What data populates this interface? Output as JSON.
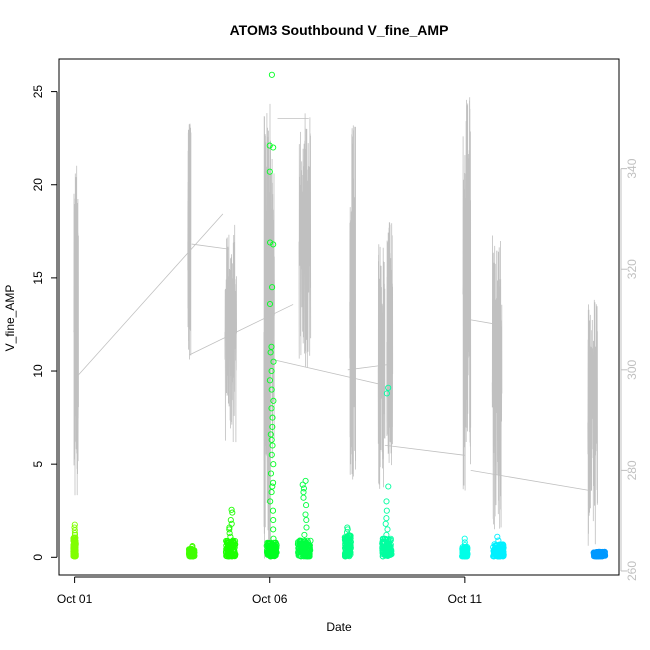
{
  "chart_data": {
    "type": "scatter",
    "title": "ATOM3 Southbound V_fine_AMP",
    "xlabel": "Date",
    "ylabel": "V_fine_AMP",
    "x_ticks": [
      {
        "label": "Oct 01",
        "value": 0
      },
      {
        "label": "Oct 06",
        "value": 5
      },
      {
        "label": "Oct 11",
        "value": 10
      }
    ],
    "y_ticks": [
      {
        "label": "0",
        "value": 0
      },
      {
        "label": "5",
        "value": 5
      },
      {
        "label": "10",
        "value": 10
      },
      {
        "label": "15",
        "value": 15
      },
      {
        "label": "20",
        "value": 20
      },
      {
        "label": "25",
        "value": 25
      }
    ],
    "y2_ticks": [
      {
        "label": "260",
        "value": 260
      },
      {
        "label": "280",
        "value": 280
      },
      {
        "label": "300",
        "value": 300
      },
      {
        "label": "320",
        "value": 320
      },
      {
        "label": "340",
        "value": 340
      }
    ],
    "xlim": [
      -0.4,
      13.95
    ],
    "ylim": [
      -0.95,
      26.75
    ],
    "y2lim": [
      259.2,
      361.8
    ],
    "grid": false,
    "legend": "none",
    "scatter_groups": [
      {
        "color": "#80ff00",
        "x_range": [
          -0.03,
          0.03
        ],
        "y_min": 0.05,
        "y_max": 1.1,
        "outliers": [
          1.2,
          1.3,
          1.45,
          1.6,
          1.75
        ]
      },
      {
        "color": "#40ff00",
        "x_range": [
          2.93,
          3.07
        ],
        "y_min": 0.05,
        "y_max": 0.45,
        "outliers": [
          0.55,
          0.6
        ]
      },
      {
        "color": "#1cff00",
        "x_range": [
          3.88,
          4.12
        ],
        "y_min": 0.05,
        "y_max": 0.9,
        "outliers": [
          1.1,
          1.3,
          1.5,
          1.6,
          1.8,
          2.0,
          2.4,
          2.55
        ]
      },
      {
        "color": "#00ff20",
        "x_range": [
          4.92,
          5.18
        ],
        "y_min": 0.05,
        "y_max": 0.8,
        "outliers": [
          1.0,
          1.5,
          2.0,
          2.5,
          3.0,
          3.5,
          3.8,
          4.0,
          4.5,
          5.0,
          5.5,
          6.0,
          6.3,
          6.6,
          7.0,
          7.5,
          8.0,
          8.4,
          9.0,
          9.5,
          10.0,
          10.5,
          11.0,
          11.3,
          13.6,
          14.5,
          16.8,
          16.9,
          20.7,
          22.0,
          22.1,
          25.9
        ]
      },
      {
        "color": "#00ff40",
        "x_range": [
          5.72,
          6.05
        ],
        "y_min": 0.05,
        "y_max": 0.9,
        "outliers": [
          1.2,
          1.6,
          2.0,
          2.3,
          2.8,
          3.2,
          3.5,
          3.7,
          3.9,
          4.1
        ]
      },
      {
        "color": "#00ff88",
        "x_range": [
          6.92,
          7.08
        ],
        "y_min": 0.05,
        "y_max": 1.2,
        "outliers": [
          1.35,
          1.5,
          1.6
        ]
      },
      {
        "color": "#00ffa0",
        "x_range": [
          7.88,
          8.12
        ],
        "y_min": 0.05,
        "y_max": 1.0,
        "outliers": [
          1.2,
          1.5,
          1.8,
          2.1,
          2.5,
          3.0,
          3.8,
          8.8,
          9.1
        ]
      },
      {
        "color": "#00ffe8",
        "x_range": [
          9.93,
          10.07
        ],
        "y_min": 0.05,
        "y_max": 0.55,
        "outliers": [
          0.65,
          0.8,
          1.0
        ]
      },
      {
        "color": "#00f0ff",
        "x_range": [
          10.72,
          11.0
        ],
        "y_min": 0.05,
        "y_max": 0.7,
        "outliers": [
          0.9,
          1.1
        ]
      },
      {
        "color": "#0099ff",
        "x_range": [
          13.3,
          13.6
        ],
        "y_min": 0.05,
        "y_max": 0.3,
        "outliers": []
      }
    ],
    "right_axis_line": {
      "color": "#c0c0c0",
      "bursts": [
        {
          "x": [
            -0.02,
            0.1
          ],
          "y_min": 273,
          "y_max": 342
        },
        {
          "x": [
            2.9,
            2.98
          ],
          "y_min": 302,
          "y_max": 349
        },
        {
          "x": [
            3.85,
            4.15
          ],
          "y_min": 285,
          "y_max": 330
        },
        {
          "x": [
            4.85,
            5.12
          ],
          "y_min": 262,
          "y_max": 353
        },
        {
          "x": [
            5.75,
            6.05
          ],
          "y_min": 300,
          "y_max": 351
        },
        {
          "x": [
            7.05,
            7.2
          ],
          "y_min": 277,
          "y_max": 350
        },
        {
          "x": [
            7.78,
            7.95
          ],
          "y_min": 276,
          "y_max": 325
        },
        {
          "x": [
            8.0,
            8.15
          ],
          "y_min": 280,
          "y_max": 331
        },
        {
          "x": [
            9.95,
            10.15
          ],
          "y_min": 275,
          "y_max": 355
        },
        {
          "x": [
            10.7,
            10.95
          ],
          "y_min": 268,
          "y_max": 327
        },
        {
          "x": [
            13.15,
            13.4
          ],
          "y_min": 265,
          "y_max": 314
        }
      ],
      "connectors": [
        {
          "x": 0.1,
          "y": 299,
          "to_x": 3.8,
          "to_y": 331
        },
        {
          "x": 2.95,
          "y": 303,
          "to_x": 5.6,
          "to_y": 313
        },
        {
          "x": 3.0,
          "y": 325,
          "to_x": 3.95,
          "to_y": 324
        },
        {
          "x": 5.1,
          "y": 302,
          "to_x": 7.9,
          "to_y": 297
        },
        {
          "x": 5.2,
          "y": 350,
          "to_x": 6.0,
          "to_y": 350
        },
        {
          "x": 7.0,
          "y": 300,
          "to_x": 8.0,
          "to_y": 301
        },
        {
          "x": 7.95,
          "y": 285,
          "to_x": 10.0,
          "to_y": 283
        },
        {
          "x": 10.1,
          "y": 310,
          "to_x": 10.85,
          "to_y": 309
        },
        {
          "x": 10.15,
          "y": 280,
          "to_x": 13.2,
          "to_y": 276
        }
      ]
    }
  }
}
